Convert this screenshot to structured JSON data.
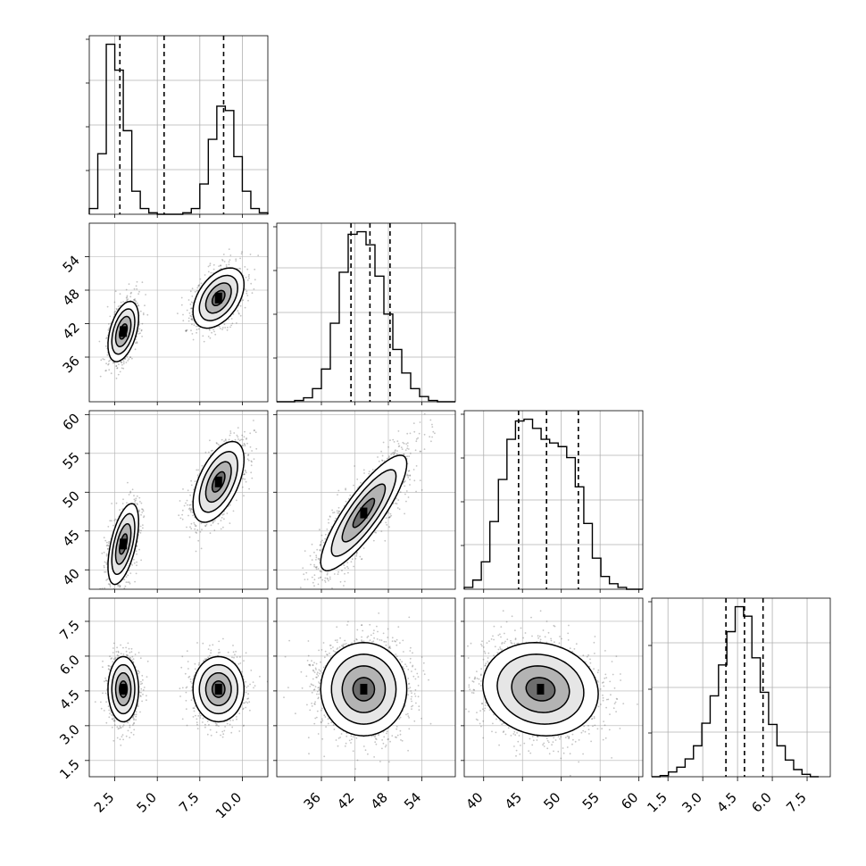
{
  "chart_data": {
    "type": "corner",
    "n_parameters": 4,
    "grid": true,
    "colors": {
      "line": "#000000",
      "grid": "#b0b0b0",
      "points": "#555555",
      "density_low": "#ffffff",
      "density_high": "#000000"
    },
    "parameters": [
      {
        "range": [
          1.0,
          11.5
        ],
        "ticks": [
          2.5,
          5.0,
          7.5,
          10.0
        ],
        "tick_labels": [
          "2.5",
          "5.0",
          "7.5",
          "10.0"
        ],
        "quantiles": [
          2.8,
          5.4,
          8.9
        ],
        "clusters": [
          {
            "mean": 3.0,
            "sd": 0.45,
            "weight": 0.5
          },
          {
            "mean": 8.6,
            "sd": 0.75,
            "weight": 0.5
          }
        ],
        "histogram": {
          "edges": [
            1.0,
            1.5,
            2.0,
            2.5,
            3.0,
            3.5,
            4.0,
            4.5,
            5.0,
            5.5,
            6.0,
            6.5,
            7.0,
            7.5,
            8.0,
            8.5,
            9.0,
            9.5,
            10.0,
            10.5,
            11.0,
            11.5
          ],
          "counts": [
            40,
            420,
            1180,
            1000,
            580,
            160,
            40,
            10,
            0,
            0,
            0,
            10,
            40,
            210,
            520,
            750,
            720,
            400,
            160,
            40,
            10
          ]
        }
      },
      {
        "range": [
          28.0,
          60.0
        ],
        "ticks": [
          36,
          42,
          48,
          54
        ],
        "tick_labels": [
          "36",
          "42",
          "48",
          "54"
        ],
        "quantiles": [
          41.3,
          44.7,
          48.3
        ],
        "histogram": {
          "edges": [
            28,
            29.6,
            31.2,
            32.8,
            34.4,
            36.0,
            37.6,
            39.2,
            40.8,
            42.4,
            44.0,
            45.6,
            47.2,
            48.8,
            50.4,
            52.0,
            53.6,
            55.2,
            56.8,
            58.4,
            60.0
          ],
          "counts": [
            0,
            0,
            10,
            30,
            100,
            250,
            600,
            990,
            1280,
            1300,
            1200,
            960,
            670,
            400,
            220,
            100,
            40,
            10,
            0,
            0
          ]
        }
      },
      {
        "range": [
          37.5,
          60.5
        ],
        "ticks": [
          40,
          45,
          50,
          55,
          60
        ],
        "tick_labels": [
          "40",
          "45",
          "50",
          "55",
          "60"
        ],
        "quantiles": [
          44.5,
          48.1,
          52.2
        ],
        "histogram": {
          "edges": [
            37.5,
            38.6,
            39.7,
            40.8,
            41.9,
            43.0,
            44.1,
            45.2,
            46.3,
            47.4,
            48.5,
            49.6,
            50.7,
            51.8,
            52.9,
            54.0,
            55.1,
            56.2,
            57.3,
            58.4,
            59.5,
            60.5
          ],
          "counts": [
            10,
            50,
            150,
            370,
            600,
            820,
            920,
            930,
            880,
            820,
            800,
            780,
            720,
            560,
            360,
            170,
            70,
            30,
            10,
            0,
            0
          ]
        }
      },
      {
        "range": [
          0.8,
          8.5
        ],
        "ticks": [
          1.5,
          3.0,
          4.5,
          6.0,
          7.5
        ],
        "tick_labels": [
          "1.5",
          "3.0",
          "4.5",
          "6.0",
          "7.5"
        ],
        "quantiles": [
          4.0,
          4.8,
          5.6
        ],
        "histogram": {
          "edges": [
            0.8,
            1.16,
            1.52,
            1.88,
            2.24,
            2.6,
            2.96,
            3.32,
            3.68,
            4.04,
            4.4,
            4.76,
            5.12,
            5.48,
            5.84,
            6.2,
            6.56,
            6.92,
            7.28,
            7.64,
            8.0
          ],
          "counts": [
            0,
            10,
            40,
            80,
            150,
            260,
            450,
            680,
            940,
            1220,
            1430,
            1350,
            1000,
            710,
            440,
            260,
            140,
            60,
            20,
            0
          ]
        }
      }
    ],
    "pair_correlations": {
      "1-0": 0.45,
      "2-0": 0.55,
      "2-1": 0.85,
      "3-0": 0.0,
      "3-1": 0.0,
      "3-2": -0.1
    },
    "contour_levels_sigma": [
      0.5,
      1.0,
      1.5,
      2.0
    ]
  }
}
